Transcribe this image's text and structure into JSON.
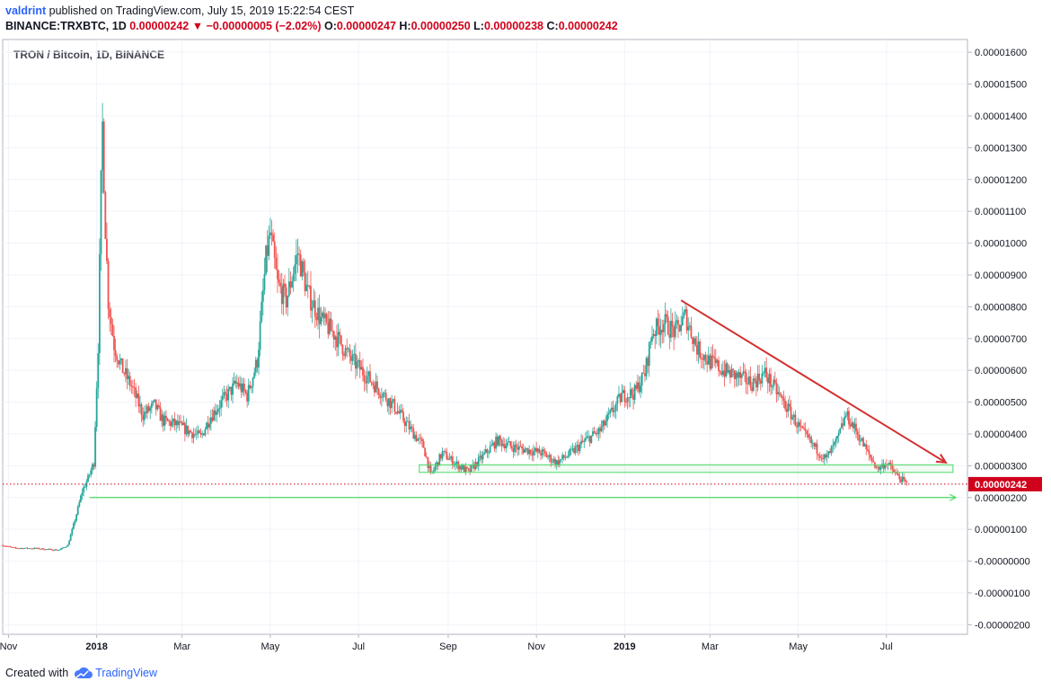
{
  "header": {
    "author": "valdrint",
    "published_text": "published on TradingView.com, July 15, 2019 15:22:54 CEST",
    "symbol": "BINANCE:TRXBTC, 1D",
    "last": "0.00000242",
    "change_arrow": "▼",
    "change": "−0.00000005 (−2.02%)",
    "o_label": "O:",
    "o_value": "0.00000247",
    "h_label": "H:",
    "h_value": "0.00000250",
    "l_label": "L:",
    "l_value": "0.00000238",
    "c_label": "C:",
    "c_value": "0.00000242"
  },
  "footer": {
    "created_with": "Created with",
    "brand": "TradingView",
    "logo_icon": "tradingview-cloud-icon"
  },
  "colors": {
    "up": "#26a69a",
    "down": "#ef5350",
    "trendline": "#d32f2f",
    "support": "#4cd964",
    "last_price": "#d0021b",
    "brand": "#2962ff"
  },
  "chart_data": {
    "type": "candlestick",
    "title": "TRON / Bitcoin, 1D, BINANCE",
    "x_ticks": [
      "Nov",
      "2018",
      "Mar",
      "May",
      "Jul",
      "Sep",
      "Nov",
      "2019",
      "Mar",
      "May",
      "Jul"
    ],
    "x_tick_dates": [
      "2017-11-01",
      "2018-01-01",
      "2018-03-01",
      "2018-05-01",
      "2018-07-01",
      "2018-09-01",
      "2018-11-01",
      "2019-01-01",
      "2019-03-01",
      "2019-05-01",
      "2019-07-01"
    ],
    "x_range": [
      "2017-10-28",
      "2019-08-26"
    ],
    "y_ticks": [
      "0.00001600",
      "0.00001500",
      "0.00001400",
      "0.00001300",
      "0.00001200",
      "0.00001100",
      "0.00001000",
      "0.00000900",
      "0.00000800",
      "0.00000700",
      "0.00000600",
      "0.00000500",
      "0.00000400",
      "0.00000300",
      "0.00000200",
      "0.00000100",
      "-0.00000000",
      "-0.00000100",
      "-0.00000200"
    ],
    "y_range": [
      -2.3e-06,
      1.64e-05
    ],
    "last_price": 2.42e-06,
    "last_price_label": "0.00000242",
    "close_series": [
      [
        "2017-10-28",
        5e-07
      ],
      [
        "2017-11-05",
        4.1e-07
      ],
      [
        "2017-11-20",
        4e-07
      ],
      [
        "2017-12-01",
        3.6e-07
      ],
      [
        "2017-12-06",
        3.5e-07
      ],
      [
        "2017-12-12",
        5e-07
      ],
      [
        "2017-12-17",
        1.3e-06
      ],
      [
        "2017-12-22",
        2.2e-06
      ],
      [
        "2017-12-26",
        2.6e-06
      ],
      [
        "2017-12-30",
        3.1e-06
      ],
      [
        "2018-01-02",
        6.8e-06
      ],
      [
        "2018-01-04",
        1.18e-05
      ],
      [
        "2018-01-05",
        1.37e-05
      ],
      [
        "2018-01-07",
        1.05e-05
      ],
      [
        "2018-01-09",
        8.2e-06
      ],
      [
        "2018-01-13",
        6.8e-06
      ],
      [
        "2018-01-18",
        6.1e-06
      ],
      [
        "2018-01-25",
        5.5e-06
      ],
      [
        "2018-02-02",
        4.6e-06
      ],
      [
        "2018-02-10",
        4.9e-06
      ],
      [
        "2018-02-16",
        4.4e-06
      ],
      [
        "2018-02-25",
        4.3e-06
      ],
      [
        "2018-03-05",
        4.1e-06
      ],
      [
        "2018-03-14",
        3.9e-06
      ],
      [
        "2018-03-20",
        4.5e-06
      ],
      [
        "2018-03-30",
        5.1e-06
      ],
      [
        "2018-04-08",
        5.6e-06
      ],
      [
        "2018-04-15",
        5.2e-06
      ],
      [
        "2018-04-22",
        6.3e-06
      ],
      [
        "2018-04-28",
        9.5e-06
      ],
      [
        "2018-05-01",
        1.03e-05
      ],
      [
        "2018-05-06",
        8.7e-06
      ],
      [
        "2018-05-12",
        8.2e-06
      ],
      [
        "2018-05-20",
        9.7e-06
      ],
      [
        "2018-05-27",
        8.4e-06
      ],
      [
        "2018-06-05",
        7.6e-06
      ],
      [
        "2018-06-15",
        7.1e-06
      ],
      [
        "2018-06-25",
        6.4e-06
      ],
      [
        "2018-07-05",
        5.9e-06
      ],
      [
        "2018-07-15",
        5.4e-06
      ],
      [
        "2018-07-25",
        4.9e-06
      ],
      [
        "2018-08-05",
        4.2e-06
      ],
      [
        "2018-08-15",
        3.6e-06
      ],
      [
        "2018-08-20",
        2.7e-06
      ],
      [
        "2018-08-28",
        3.4e-06
      ],
      [
        "2018-09-05",
        3.1e-06
      ],
      [
        "2018-09-15",
        2.8e-06
      ],
      [
        "2018-09-25",
        3.3e-06
      ],
      [
        "2018-10-05",
        3.8e-06
      ],
      [
        "2018-10-15",
        3.6e-06
      ],
      [
        "2018-10-25",
        3.5e-06
      ],
      [
        "2018-11-05",
        3.4e-06
      ],
      [
        "2018-11-15",
        3.1e-06
      ],
      [
        "2018-11-25",
        3.4e-06
      ],
      [
        "2018-12-05",
        3.8e-06
      ],
      [
        "2018-12-15",
        4.1e-06
      ],
      [
        "2018-12-22",
        4.6e-06
      ],
      [
        "2018-12-30",
        5.2e-06
      ],
      [
        "2019-01-08",
        5.3e-06
      ],
      [
        "2019-01-15",
        5.9e-06
      ],
      [
        "2019-01-20",
        7.2e-06
      ],
      [
        "2019-01-28",
        7.5e-06
      ],
      [
        "2019-02-05",
        7.2e-06
      ],
      [
        "2019-02-12",
        7.7e-06
      ],
      [
        "2019-02-20",
        6.7e-06
      ],
      [
        "2019-02-28",
        6.3e-06
      ],
      [
        "2019-03-10",
        6e-06
      ],
      [
        "2019-03-20",
        5.8e-06
      ],
      [
        "2019-03-30",
        5.6e-06
      ],
      [
        "2019-04-08",
        5.9e-06
      ],
      [
        "2019-04-15",
        5.4e-06
      ],
      [
        "2019-04-25",
        4.7e-06
      ],
      [
        "2019-05-03",
        4.1e-06
      ],
      [
        "2019-05-12",
        3.6e-06
      ],
      [
        "2019-05-20",
        3.2e-06
      ],
      [
        "2019-05-28",
        3.8e-06
      ],
      [
        "2019-06-03",
        4.6e-06
      ],
      [
        "2019-06-10",
        4.1e-06
      ],
      [
        "2019-06-18",
        3.4e-06
      ],
      [
        "2019-06-25",
        2.9e-06
      ],
      [
        "2019-07-01",
        3.1e-06
      ],
      [
        "2019-07-08",
        2.7e-06
      ],
      [
        "2019-07-15",
        2.42e-06
      ]
    ],
    "annotations": {
      "trendline": {
        "from": [
          "2019-02-09",
          8.2e-06
        ],
        "to": [
          "2019-08-11",
          3.1e-06
        ]
      },
      "support_zone": {
        "from_date": "2018-08-12",
        "to_date": "2019-08-16",
        "top": 3.03e-06,
        "bottom": 2.79e-06
      },
      "support_line": {
        "from_date": "2017-12-27",
        "to_date": "2019-08-18",
        "value": 2e-06
      }
    }
  }
}
